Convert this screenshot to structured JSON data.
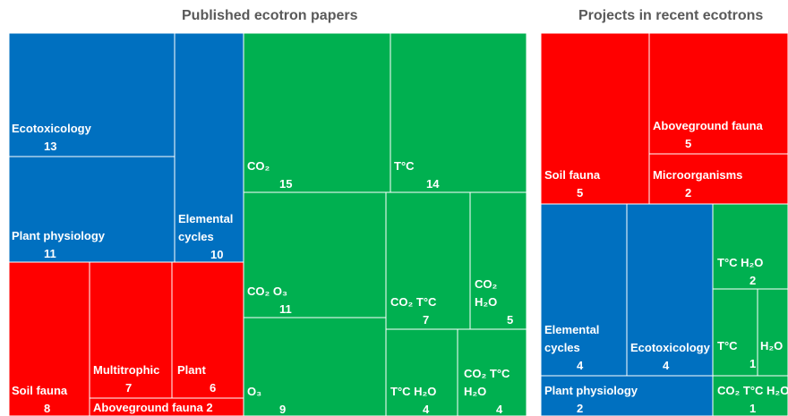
{
  "chart_data": [
    {
      "type": "treemap",
      "title": "Published ecotron papers",
      "groups": [
        {
          "name": "blue",
          "color": "#0070c0",
          "cells": [
            {
              "id": "ecotox",
              "lines": [
                "Ecotoxicology",
                "13"
              ],
              "value": 13
            },
            {
              "id": "plantphys",
              "lines": [
                "Plant physiology",
                "11"
              ],
              "value": 11
            },
            {
              "id": "elemental",
              "lines": [
                "Elemental",
                "cycles",
                "10"
              ],
              "value": 10
            }
          ]
        },
        {
          "name": "red",
          "color": "#ff0000",
          "cells": [
            {
              "id": "soilfauna",
              "lines": [
                "Soil fauna",
                "8"
              ],
              "value": 8
            },
            {
              "id": "multitrophic",
              "lines": [
                "Multitrophic",
                "7"
              ],
              "value": 7
            },
            {
              "id": "plant",
              "lines": [
                "Plant",
                "6"
              ],
              "value": 6
            },
            {
              "id": "abovefauna",
              "lines": [
                "Aboveground fauna 2"
              ],
              "value": 2
            }
          ]
        },
        {
          "name": "green",
          "color": "#00b050",
          "cells": [
            {
              "id": "co2",
              "lines": [
                "CO₂",
                "15"
              ],
              "value": 15
            },
            {
              "id": "tc",
              "lines": [
                "T°C",
                "14"
              ],
              "value": 14
            },
            {
              "id": "co2o3",
              "lines": [
                "CO₂ O₃",
                "11"
              ],
              "value": 11
            },
            {
              "id": "co2tc",
              "lines": [
                "CO₂  T°C",
                "7"
              ],
              "value": 7
            },
            {
              "id": "co2h2o",
              "lines": [
                "CO₂",
                "H₂O",
                "5"
              ],
              "value": 5
            },
            {
              "id": "o3",
              "lines": [
                "O₃",
                "9"
              ],
              "value": 9
            },
            {
              "id": "tch2o",
              "lines": [
                "T°C  H₂O",
                "4"
              ],
              "value": 4
            },
            {
              "id": "co2tch2o",
              "lines": [
                "CO₂  T°C",
                "H₂O",
                "4"
              ],
              "value": 4
            }
          ]
        }
      ]
    },
    {
      "type": "treemap",
      "title": "Projects in recent ecotrons",
      "groups": [
        {
          "name": "red",
          "color": "#ff0000",
          "cells": [
            {
              "id": "r_soilfauna",
              "lines": [
                "Soil fauna",
                "5"
              ],
              "value": 5
            },
            {
              "id": "r_abovefauna",
              "lines": [
                "Aboveground fauna",
                "5"
              ],
              "value": 5
            },
            {
              "id": "r_micro",
              "lines": [
                "Microorganisms",
                "2"
              ],
              "value": 2
            }
          ]
        },
        {
          "name": "blue",
          "color": "#0070c0",
          "cells": [
            {
              "id": "r_elemental",
              "lines": [
                "Elemental",
                "cycles",
                "4"
              ],
              "value": 4
            },
            {
              "id": "r_ecotox",
              "lines": [
                "Ecotoxicology",
                "4"
              ],
              "value": 4
            },
            {
              "id": "r_plantphys",
              "lines": [
                "Plant physiology",
                "2"
              ],
              "value": 2
            }
          ]
        },
        {
          "name": "green",
          "color": "#00b050",
          "cells": [
            {
              "id": "r_tch2o",
              "lines": [
                "T°C  H₂O",
                "2"
              ],
              "value": 2
            },
            {
              "id": "r_tc",
              "lines": [
                "T°C",
                "1"
              ],
              "value": 1
            },
            {
              "id": "r_h2o",
              "lines": [
                "H₂O",
                "1"
              ],
              "value": 1
            },
            {
              "id": "r_co2tc",
              "lines": [
                "CO₂  T°C H₂O",
                "1"
              ],
              "value": 1
            }
          ]
        }
      ]
    }
  ]
}
